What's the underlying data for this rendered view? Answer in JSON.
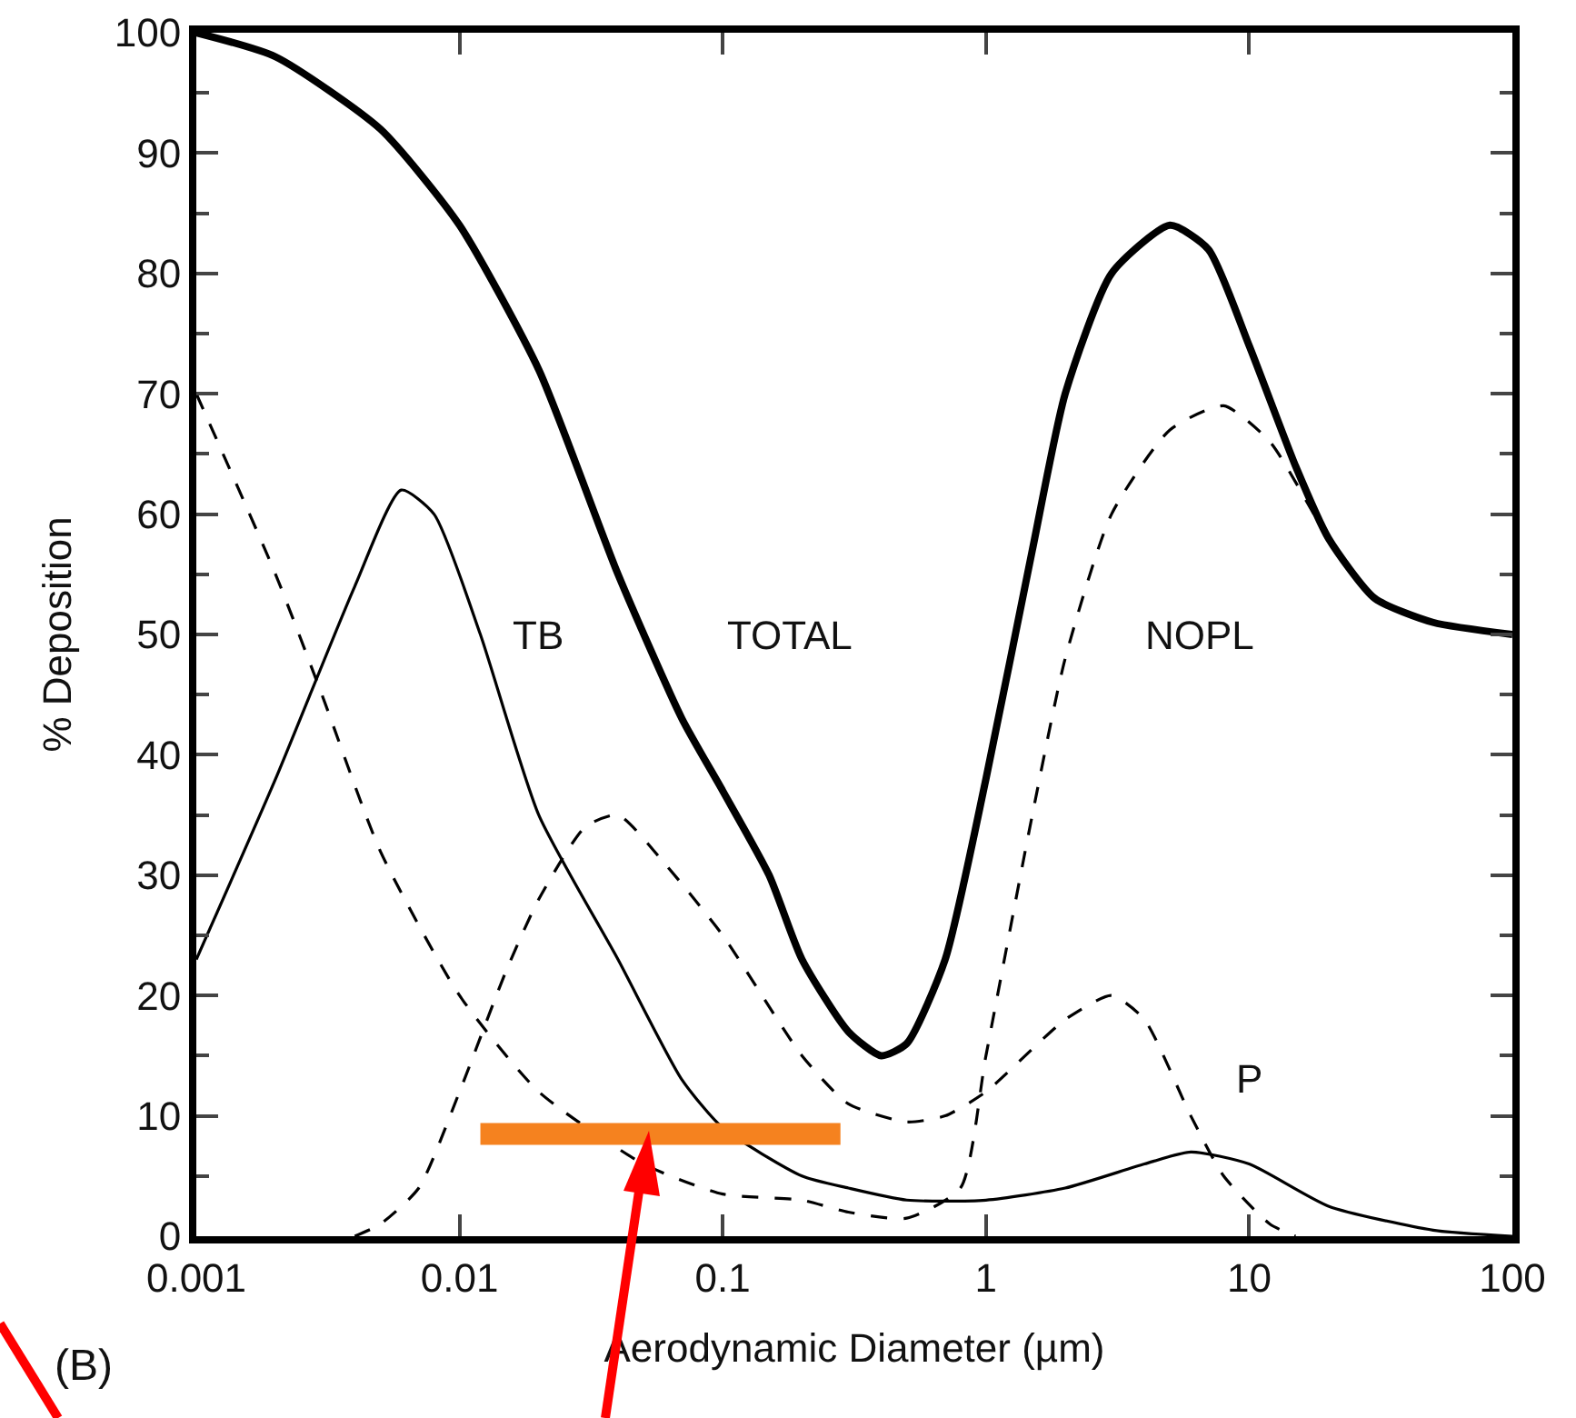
{
  "chart_data": {
    "type": "line",
    "xlabel": "Aerodynamic Diameter (µm)",
    "ylabel": "% Deposition",
    "log": "x",
    "xlim": [
      0.001,
      100
    ],
    "xticks": [
      0.001,
      0.01,
      0.1,
      1,
      10,
      100
    ],
    "ylim": [
      0,
      100
    ],
    "yticks": [
      0,
      10,
      20,
      30,
      40,
      50,
      60,
      70,
      80,
      90,
      100
    ],
    "grid": false,
    "legend": false,
    "marker": "none",
    "series": [
      {
        "name": "TOTAL",
        "color": "#000000",
        "line_style": "solid",
        "x": [
          0.001,
          0.002,
          0.005,
          0.01,
          0.02,
          0.04,
          0.07,
          0.1,
          0.15,
          0.2,
          0.3,
          0.4,
          0.5,
          0.7,
          1,
          1.5,
          2,
          3,
          5,
          7,
          10,
          15,
          20,
          30,
          50,
          100
        ],
        "values": [
          100,
          98,
          92,
          84,
          72,
          55,
          43,
          37,
          30,
          23,
          17,
          15,
          16,
          23,
          38,
          57,
          70,
          80,
          84,
          82,
          74,
          64,
          58,
          53,
          51,
          50
        ]
      },
      {
        "name": "NOPL",
        "color": "#000000",
        "line_style": "dashed",
        "x": [
          0.001,
          0.002,
          0.003,
          0.005,
          0.01,
          0.02,
          0.05,
          0.1,
          0.2,
          0.3,
          0.5,
          0.8,
          1,
          1.5,
          2,
          3,
          5,
          8,
          12,
          20,
          30,
          50,
          100
        ],
        "values": [
          70,
          55,
          45,
          32,
          20,
          12,
          6,
          3.5,
          3,
          2,
          1.5,
          4,
          15,
          35,
          48,
          60,
          67,
          69,
          66,
          58,
          53,
          51,
          50
        ]
      },
      {
        "name": "TB",
        "color": "#000000",
        "line_style": "solid",
        "x": [
          0.001,
          0.002,
          0.004,
          0.006,
          0.008,
          0.012,
          0.02,
          0.04,
          0.07,
          0.1,
          0.2,
          0.3,
          0.5,
          1,
          2,
          4,
          6,
          10,
          20,
          50,
          100
        ],
        "values": [
          23,
          38,
          54,
          62,
          60,
          50,
          35,
          23,
          13,
          9,
          5,
          4,
          3,
          3,
          4,
          6,
          7,
          6,
          2.5,
          0.5,
          0
        ]
      },
      {
        "name": "P",
        "color": "#000000",
        "line_style": "dashed",
        "x": [
          0.004,
          0.005,
          0.007,
          0.01,
          0.015,
          0.02,
          0.03,
          0.04,
          0.06,
          0.1,
          0.2,
          0.3,
          0.5,
          0.7,
          1,
          2,
          3,
          4,
          6,
          8,
          12,
          15
        ],
        "values": [
          0,
          1,
          4,
          12,
          22,
          28,
          34,
          35,
          31,
          25,
          15,
          11,
          9.5,
          10,
          12,
          18,
          20,
          18,
          10,
          5,
          1,
          0
        ]
      },
      {
        "color": "#f5821f",
        "line_style": "solid",
        "x": [
          0.012,
          0.28
        ],
        "values": [
          8.5,
          8.5
        ]
      }
    ],
    "annotations": [
      "(B)"
    ]
  }
}
